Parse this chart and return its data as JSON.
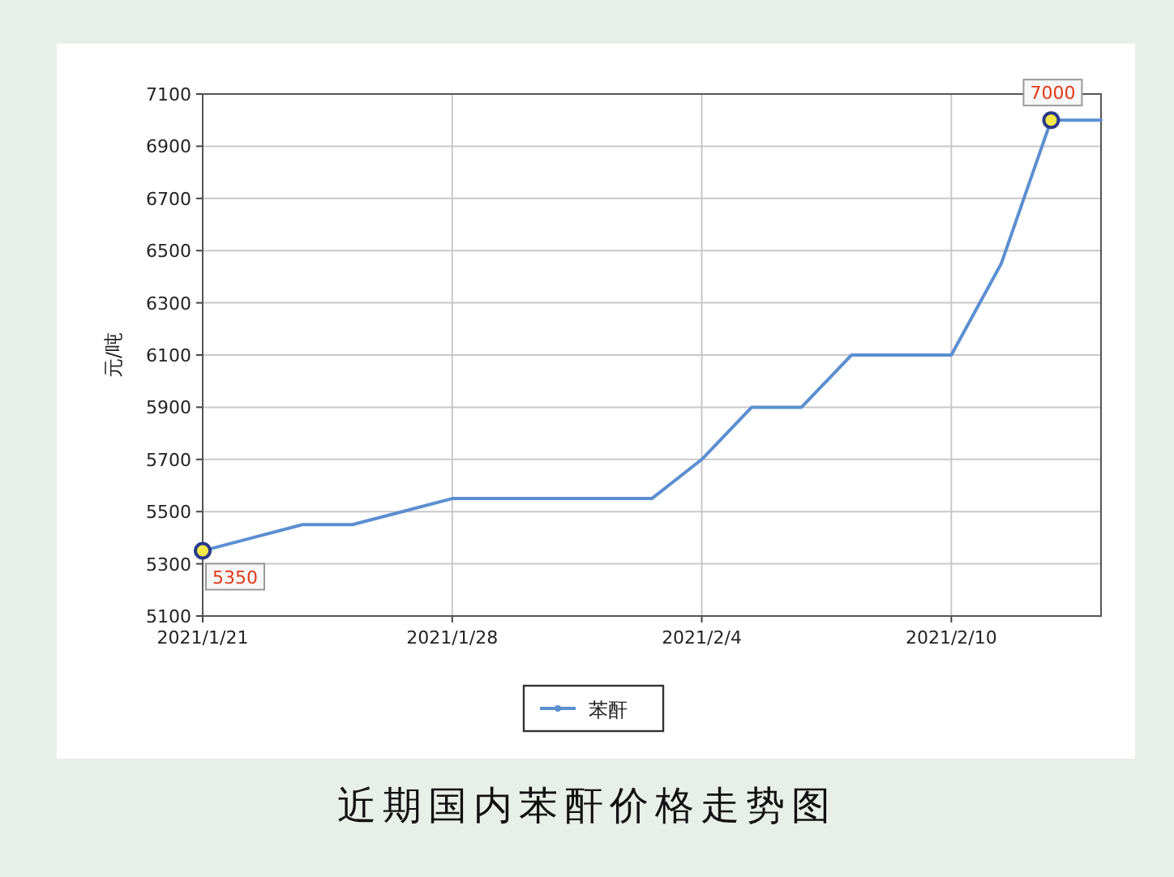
{
  "chart_data": {
    "type": "line",
    "title": "近期国内苯酐价格走势图",
    "ylabel": "元/吨",
    "categories": [
      "2021/1/21",
      null,
      null,
      null,
      null,
      "2021/1/28",
      null,
      null,
      null,
      null,
      "2021/2/4",
      null,
      null,
      null,
      null,
      "2021/2/10",
      null,
      null,
      null
    ],
    "series": [
      {
        "name": "苯酐",
        "color": "#5b8fd1",
        "values": [
          5350,
          5400,
          5450,
          5450,
          5500,
          5550,
          5550,
          5550,
          5550,
          5550,
          5700,
          5900,
          5900,
          6100,
          6100,
          6100,
          6450,
          7000,
          7000
        ]
      }
    ],
    "ylim": [
      5100,
      7100
    ],
    "yticks": [
      5100,
      5300,
      5500,
      5700,
      5900,
      6100,
      6300,
      6500,
      6700,
      6900,
      7100
    ],
    "annotations": [
      {
        "text": "5350",
        "x": "2021/1/21",
        "y": 5350
      },
      {
        "text": "7000",
        "y": 7000
      }
    ],
    "grid": true,
    "legend": "bottom"
  }
}
